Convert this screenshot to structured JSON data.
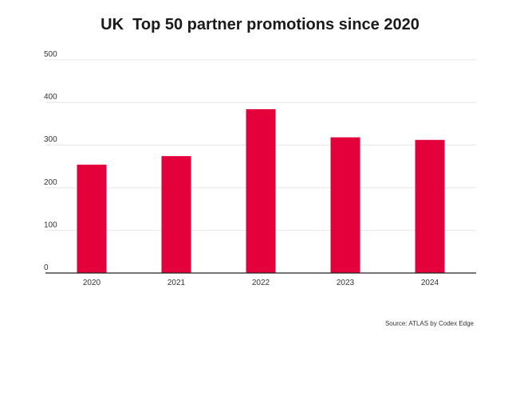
{
  "chart_data": {
    "type": "bar",
    "title": "UK  Top 50 partner promotions since 2020",
    "xlabel": "",
    "ylabel": "",
    "categories": [
      "2020",
      "2021",
      "2022",
      "2023",
      "2024"
    ],
    "values": [
      254,
      274,
      384,
      318,
      312
    ],
    "ylim": [
      0,
      500
    ],
    "yticks": [
      0,
      100,
      200,
      300,
      400,
      500
    ],
    "grid": true,
    "legend": "none",
    "bar_color": "#e4003b",
    "source": "Source: ATLAS by Codex Edge"
  }
}
